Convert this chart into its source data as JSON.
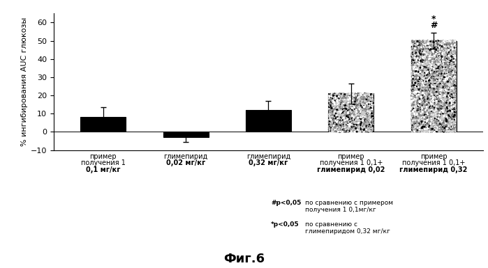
{
  "values": [
    8.0,
    -3.0,
    12.0,
    21.0,
    50.0
  ],
  "error_bars": [
    5.5,
    2.5,
    5.0,
    5.5,
    4.5
  ],
  "bar_colors_solid": [
    "#000000",
    "#000000",
    "#000000",
    null,
    null
  ],
  "bar_colors_speckled": [
    false,
    false,
    false,
    true,
    true
  ],
  "ylim": [
    -10,
    65
  ],
  "yticks": [
    -10,
    0,
    10,
    20,
    30,
    40,
    50,
    60
  ],
  "ylabel": "% ингибирования AUC глюкозы",
  "figure_title": "Фиг.6",
  "annotation_hash": "#",
  "annotation_star": "*",
  "legend_line1_bold": "#p<0,05",
  "legend_line1_text": "по сравнению с примером\nполучения 1 0,1мг/кг",
  "legend_line2_bold": "*p<0,05",
  "legend_line2_text": "по сравнению с\nглимепиридом 0,32 мг/кг",
  "background_color": "#ffffff",
  "bar_width": 0.55,
  "label_lines": [
    [
      [
        "пример",
        false
      ],
      [
        "получения 1",
        false
      ],
      [
        "0,1 мг/кг",
        true
      ]
    ],
    [
      [
        "глимепирид",
        false
      ],
      [
        "0,02 мг/кг",
        true
      ]
    ],
    [
      [
        "глимепирид",
        false
      ],
      [
        "0,32 мг/кг",
        true
      ]
    ],
    [
      [
        "пример",
        false
      ],
      [
        "получения 1 0,1+",
        false
      ],
      [
        "глимепирид 0,02",
        true
      ]
    ],
    [
      [
        "пример",
        false
      ],
      [
        "получения 1 0,1+",
        false
      ],
      [
        "глимепирид 0,32",
        true
      ]
    ]
  ]
}
